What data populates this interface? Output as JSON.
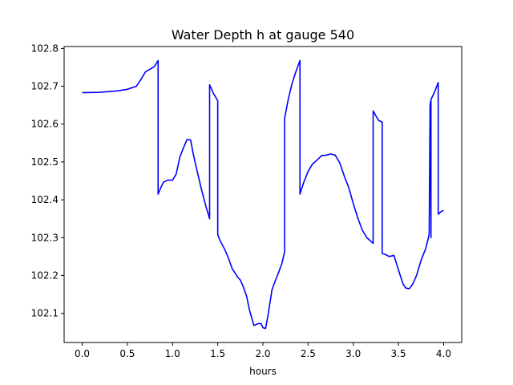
{
  "chart_data": {
    "type": "line",
    "title": "Water Depth h at gauge 540",
    "xlabel": "hours",
    "ylabel": "",
    "xlim": [
      -0.2,
      4.2
    ],
    "ylim": [
      102.023,
      102.805
    ],
    "xticks": [
      0.0,
      0.5,
      1.0,
      1.5,
      2.0,
      2.5,
      3.0,
      3.5,
      4.0
    ],
    "xtick_labels": [
      "0.0",
      "0.5",
      "1.0",
      "1.5",
      "2.0",
      "2.5",
      "3.0",
      "3.5",
      "4.0"
    ],
    "yticks": [
      102.1,
      102.2,
      102.3,
      102.4,
      102.5,
      102.6,
      102.7,
      102.8
    ],
    "ytick_labels": [
      "102.1",
      "102.2",
      "102.3",
      "102.4",
      "102.5",
      "102.6",
      "102.7",
      "102.8"
    ],
    "grid": false,
    "legend": "none",
    "series": [
      {
        "color": "#0000ff",
        "x": [
          0.0,
          0.2,
          0.4,
          0.5,
          0.6,
          0.65,
          0.7,
          0.75,
          0.8,
          0.84,
          0.84,
          0.87,
          0.9,
          0.95,
          1.0,
          1.04,
          1.08,
          1.12,
          1.16,
          1.2,
          1.23,
          1.27,
          1.32,
          1.37,
          1.41,
          1.41,
          1.45,
          1.5,
          1.5,
          1.53,
          1.58,
          1.62,
          1.66,
          1.72,
          1.75,
          1.78,
          1.82,
          1.85,
          1.9,
          1.95,
          1.98,
          2.0,
          2.03,
          2.06,
          2.1,
          2.14,
          2.18,
          2.21,
          2.24,
          2.24,
          2.28,
          2.32,
          2.36,
          2.41,
          2.41,
          2.45,
          2.5,
          2.55,
          2.6,
          2.65,
          2.7,
          2.75,
          2.8,
          2.85,
          2.9,
          2.95,
          3.0,
          3.05,
          3.1,
          3.15,
          3.22,
          3.22,
          3.25,
          3.28,
          3.32,
          3.32,
          3.36,
          3.4,
          3.43,
          3.45,
          3.48,
          3.52,
          3.55,
          3.58,
          3.62,
          3.66,
          3.7,
          3.75,
          3.8,
          3.83,
          3.84,
          3.85,
          3.855,
          3.86,
          3.86,
          3.9,
          3.94,
          3.94,
          3.98,
          4.0
        ],
        "y": [
          102.683,
          102.684,
          102.688,
          102.692,
          102.7,
          102.718,
          102.738,
          102.745,
          102.752,
          102.768,
          102.415,
          102.432,
          102.447,
          102.452,
          102.452,
          102.468,
          102.512,
          102.537,
          102.559,
          102.558,
          102.52,
          102.478,
          102.427,
          102.382,
          102.35,
          102.704,
          102.682,
          102.662,
          102.308,
          102.29,
          102.268,
          102.245,
          102.218,
          102.196,
          102.188,
          102.172,
          102.145,
          102.11,
          102.068,
          102.073,
          102.073,
          102.062,
          102.06,
          102.1,
          102.162,
          102.188,
          102.212,
          102.232,
          102.262,
          102.615,
          102.665,
          102.705,
          102.735,
          102.768,
          102.415,
          102.445,
          102.475,
          102.495,
          102.505,
          102.517,
          102.518,
          102.521,
          102.518,
          102.498,
          102.463,
          102.432,
          102.39,
          102.352,
          102.32,
          102.3,
          102.285,
          102.635,
          102.622,
          102.61,
          102.605,
          102.258,
          102.255,
          102.25,
          102.252,
          102.253,
          102.23,
          102.2,
          102.178,
          102.167,
          102.165,
          102.178,
          102.2,
          102.24,
          102.27,
          102.298,
          102.31,
          102.648,
          102.66,
          102.3,
          102.665,
          102.685,
          102.71,
          102.362,
          102.37,
          102.372
        ]
      }
    ]
  }
}
